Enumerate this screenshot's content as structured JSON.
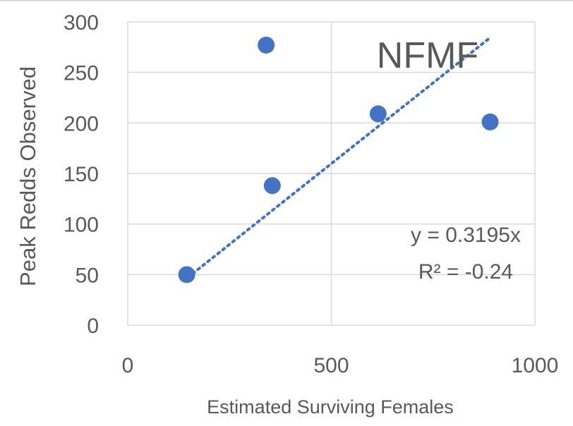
{
  "chart_data": {
    "type": "scatter",
    "title": "NFMF",
    "xlabel": "Estimated Surviving Females",
    "ylabel": "Peak Redds Observed",
    "xlim": [
      0,
      1000
    ],
    "ylim": [
      0,
      300
    ],
    "x_ticks": [
      0,
      500,
      1000
    ],
    "y_ticks": [
      0,
      50,
      100,
      150,
      200,
      250,
      300
    ],
    "grid": true,
    "legend": "none",
    "series": [
      {
        "color": "#4472c4",
        "points": [
          {
            "x": 145,
            "y": 50
          },
          {
            "x": 340,
            "y": 277
          },
          {
            "x": 355,
            "y": 138
          },
          {
            "x": 615,
            "y": 209
          },
          {
            "x": 890,
            "y": 201
          }
        ]
      }
    ],
    "trendline": {
      "style": "dotted",
      "color": "#4472c4",
      "slope": 0.3195,
      "x_range": [
        160,
        885
      ],
      "equation_label": "y = 0.3195x",
      "r2_label": "R² = -0.24"
    },
    "colors": {
      "grid": "#d9d9d9",
      "axis_text": "#595959",
      "title_text": "#595959"
    }
  }
}
